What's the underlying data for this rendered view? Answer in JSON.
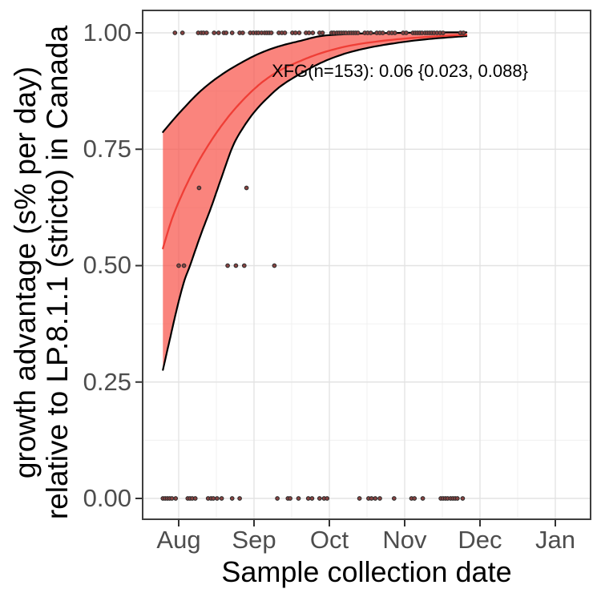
{
  "colors": {
    "band_fill": "#f8544b",
    "band_fill_opacity": 0.72,
    "band_border": "#000000",
    "median_line": "#ef3e36",
    "grid_major": "#e3e3e3",
    "grid_minor": "#f0f0f0",
    "panel_border": "#3f3f3f",
    "tick_mark": "#333333",
    "tick_label": "#4d4d4d",
    "title_color": "#000000",
    "point_fill": "#8a4341",
    "point_stroke": "#2e2e2e"
  },
  "chart_data": {
    "type": "scatter",
    "subtype": "logistic-fit-with-confidence-ribbon",
    "title": "",
    "xlabel": "Sample collection date",
    "ylabel_lines": [
      "growth advantage (s% per day)",
      "relative to LP.8.1.1 (stricto) in Canada"
    ],
    "annotation": "XFG(n=153): 0.06 {0.023, 0.088}",
    "fit": {
      "variant": "XFG",
      "n": 153,
      "estimate": 0.06,
      "ci_low": 0.023,
      "ci_high": 0.088,
      "reference": "LP.8.1.1 (stricto)",
      "region": "Canada"
    },
    "x_unit": "months since Aug 1",
    "x_ticks": [
      "Aug",
      "Sep",
      "Oct",
      "Nov",
      "Dec",
      "Jan"
    ],
    "x_tick_values": [
      0,
      1,
      2,
      3,
      4,
      5
    ],
    "x_minor_values": [
      0.5,
      1.5,
      2.5,
      3.5,
      4.5
    ],
    "xlim": [
      -0.49,
      5.48
    ],
    "y_ticks": [
      "1.00",
      "0.75",
      "0.50",
      "0.25",
      "0.00"
    ],
    "y_tick_values": [
      1.0,
      0.75,
      0.5,
      0.25,
      0.0
    ],
    "y_minor_values": [
      0.875,
      0.625,
      0.375,
      0.125
    ],
    "ylim": [
      -0.047,
      1.05
    ],
    "grid": true,
    "legend": "none",
    "ribbon_upper": {
      "x": [
        -0.21,
        0.02,
        0.29,
        0.55,
        0.82,
        1.09,
        1.35,
        1.62,
        1.88,
        2.2,
        2.52,
        2.95,
        3.37,
        3.82
      ],
      "y": [
        0.787,
        0.83,
        0.875,
        0.908,
        0.935,
        0.957,
        0.972,
        0.983,
        0.993,
        0.997,
        0.999,
        1.0,
        1.001,
        1.001
      ]
    },
    "median_curve": {
      "x": [
        -0.21,
        -0.09,
        0.05,
        0.2,
        0.34,
        0.5,
        0.66,
        0.82,
        0.98,
        1.14,
        1.35,
        1.62,
        1.88,
        2.2,
        2.52,
        2.95,
        3.37,
        3.82
      ],
      "y": [
        0.537,
        0.6,
        0.655,
        0.705,
        0.745,
        0.785,
        0.82,
        0.85,
        0.876,
        0.898,
        0.92,
        0.94,
        0.956,
        0.97,
        0.979,
        0.987,
        0.992,
        0.996
      ]
    },
    "ribbon_lower": {
      "x": [
        -0.21,
        -0.12,
        -0.02,
        0.07,
        0.15,
        0.29,
        0.43,
        0.57,
        0.72,
        0.87,
        1.03,
        1.19,
        1.35,
        1.56,
        1.88,
        2.2,
        2.52,
        2.84,
        3.16,
        3.48,
        3.82
      ],
      "y": [
        0.276,
        0.34,
        0.41,
        0.465,
        0.5,
        0.565,
        0.625,
        0.69,
        0.757,
        0.8,
        0.835,
        0.862,
        0.885,
        0.907,
        0.935,
        0.955,
        0.968,
        0.977,
        0.984,
        0.989,
        0.993
      ]
    },
    "point_groups": [
      {
        "value": 1.0,
        "x": [
          -0.05,
          0.05,
          0.26,
          0.3,
          0.33,
          0.37,
          0.47,
          0.53,
          0.6,
          0.63,
          0.71,
          0.81,
          0.85,
          0.95,
          0.99,
          1.03,
          1.06,
          1.1,
          1.14,
          1.17,
          1.2,
          1.23,
          1.33,
          1.37,
          1.41,
          1.51,
          1.55,
          1.6,
          1.69,
          1.73,
          1.78,
          1.87,
          1.91,
          2.03,
          2.06,
          2.1,
          2.13,
          2.16,
          2.19,
          2.22,
          2.26,
          2.29,
          2.32,
          2.35,
          2.38,
          2.47,
          2.51,
          2.55,
          2.63,
          2.67,
          2.71,
          2.79,
          2.83,
          2.87,
          2.98,
          3.02,
          3.11,
          3.14,
          3.17,
          3.2,
          3.23,
          3.27,
          3.3,
          3.33,
          3.36,
          3.39,
          3.43,
          3.47,
          3.51,
          3.74,
          3.78
        ]
      },
      {
        "value": 0.667,
        "x": [
          0.27,
          0.9
        ]
      },
      {
        "value": 0.5,
        "x": [
          0.0,
          0.07,
          0.65,
          0.76,
          0.87,
          1.27
        ]
      },
      {
        "value": 0.0,
        "x": [
          -0.21,
          -0.18,
          -0.15,
          -0.12,
          -0.09,
          -0.04,
          0.12,
          0.15,
          0.18,
          0.22,
          0.39,
          0.43,
          0.46,
          0.51,
          0.57,
          0.71,
          0.81,
          1.31,
          1.45,
          1.48,
          1.59,
          1.72,
          1.77,
          1.87,
          1.93,
          1.97,
          2.4,
          2.52,
          2.56,
          2.61,
          2.67,
          2.86,
          3.09,
          3.13,
          3.24,
          3.48,
          3.51,
          3.54,
          3.57,
          3.61,
          3.64,
          3.67,
          3.7,
          3.77
        ]
      }
    ]
  }
}
